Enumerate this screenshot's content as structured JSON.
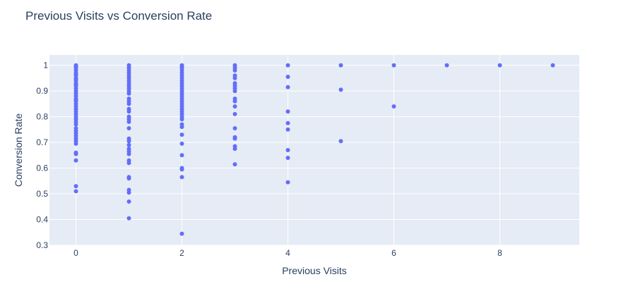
{
  "chart_data": {
    "type": "scatter",
    "title": "Previous Visits vs Conversion Rate",
    "xlabel": "Previous Visits",
    "ylabel": "Conversion Rate",
    "xlim": [
      -0.5,
      9.5
    ],
    "ylim": [
      0.3,
      1.04
    ],
    "xticks": [
      0,
      2,
      4,
      6,
      8
    ],
    "yticks": [
      0.3,
      0.4,
      0.5,
      0.6,
      0.7,
      0.8,
      0.9,
      1
    ],
    "grid": true,
    "colors": {
      "marker": "#636efa",
      "plot_bg": "#e5ecf6",
      "grid": "#ffffff",
      "text": "#2a3f5f"
    },
    "points": [
      {
        "x": 0,
        "y": 1.0
      },
      {
        "x": 0,
        "y": 0.995
      },
      {
        "x": 0,
        "y": 0.99
      },
      {
        "x": 0,
        "y": 0.98
      },
      {
        "x": 0,
        "y": 0.97
      },
      {
        "x": 0,
        "y": 0.965
      },
      {
        "x": 0,
        "y": 0.96
      },
      {
        "x": 0,
        "y": 0.95
      },
      {
        "x": 0,
        "y": 0.945
      },
      {
        "x": 0,
        "y": 0.94
      },
      {
        "x": 0,
        "y": 0.93
      },
      {
        "x": 0,
        "y": 0.925
      },
      {
        "x": 0,
        "y": 0.92
      },
      {
        "x": 0,
        "y": 0.91
      },
      {
        "x": 0,
        "y": 0.9
      },
      {
        "x": 0,
        "y": 0.89
      },
      {
        "x": 0,
        "y": 0.88
      },
      {
        "x": 0,
        "y": 0.87
      },
      {
        "x": 0,
        "y": 0.865
      },
      {
        "x": 0,
        "y": 0.86
      },
      {
        "x": 0,
        "y": 0.85
      },
      {
        "x": 0,
        "y": 0.84
      },
      {
        "x": 0,
        "y": 0.83
      },
      {
        "x": 0,
        "y": 0.82
      },
      {
        "x": 0,
        "y": 0.81
      },
      {
        "x": 0,
        "y": 0.8
      },
      {
        "x": 0,
        "y": 0.79
      },
      {
        "x": 0,
        "y": 0.78
      },
      {
        "x": 0,
        "y": 0.77
      },
      {
        "x": 0,
        "y": 0.755
      },
      {
        "x": 0,
        "y": 0.745
      },
      {
        "x": 0,
        "y": 0.735
      },
      {
        "x": 0,
        "y": 0.725
      },
      {
        "x": 0,
        "y": 0.715
      },
      {
        "x": 0,
        "y": 0.705
      },
      {
        "x": 0,
        "y": 0.695
      },
      {
        "x": 0,
        "y": 0.66
      },
      {
        "x": 0,
        "y": 0.655
      },
      {
        "x": 0,
        "y": 0.63
      },
      {
        "x": 0,
        "y": 0.53
      },
      {
        "x": 0,
        "y": 0.51
      },
      {
        "x": 1,
        "y": 1.0
      },
      {
        "x": 1,
        "y": 0.99
      },
      {
        "x": 1,
        "y": 0.98
      },
      {
        "x": 1,
        "y": 0.97
      },
      {
        "x": 1,
        "y": 0.96
      },
      {
        "x": 1,
        "y": 0.95
      },
      {
        "x": 1,
        "y": 0.94
      },
      {
        "x": 1,
        "y": 0.93
      },
      {
        "x": 1,
        "y": 0.92
      },
      {
        "x": 1,
        "y": 0.91
      },
      {
        "x": 1,
        "y": 0.9
      },
      {
        "x": 1,
        "y": 0.89
      },
      {
        "x": 1,
        "y": 0.87
      },
      {
        "x": 1,
        "y": 0.86
      },
      {
        "x": 1,
        "y": 0.85
      },
      {
        "x": 1,
        "y": 0.83
      },
      {
        "x": 1,
        "y": 0.82
      },
      {
        "x": 1,
        "y": 0.8
      },
      {
        "x": 1,
        "y": 0.79
      },
      {
        "x": 1,
        "y": 0.78
      },
      {
        "x": 1,
        "y": 0.755
      },
      {
        "x": 1,
        "y": 0.715
      },
      {
        "x": 1,
        "y": 0.705
      },
      {
        "x": 1,
        "y": 0.69
      },
      {
        "x": 1,
        "y": 0.675
      },
      {
        "x": 1,
        "y": 0.665
      },
      {
        "x": 1,
        "y": 0.655
      },
      {
        "x": 1,
        "y": 0.63
      },
      {
        "x": 1,
        "y": 0.62
      },
      {
        "x": 1,
        "y": 0.565
      },
      {
        "x": 1,
        "y": 0.56
      },
      {
        "x": 1,
        "y": 0.515
      },
      {
        "x": 1,
        "y": 0.505
      },
      {
        "x": 1,
        "y": 0.47
      },
      {
        "x": 1,
        "y": 0.405
      },
      {
        "x": 2,
        "y": 1.0
      },
      {
        "x": 2,
        "y": 0.995
      },
      {
        "x": 2,
        "y": 0.99
      },
      {
        "x": 2,
        "y": 0.98
      },
      {
        "x": 2,
        "y": 0.97
      },
      {
        "x": 2,
        "y": 0.96
      },
      {
        "x": 2,
        "y": 0.95
      },
      {
        "x": 2,
        "y": 0.94
      },
      {
        "x": 2,
        "y": 0.93
      },
      {
        "x": 2,
        "y": 0.92
      },
      {
        "x": 2,
        "y": 0.91
      },
      {
        "x": 2,
        "y": 0.9
      },
      {
        "x": 2,
        "y": 0.89
      },
      {
        "x": 2,
        "y": 0.88
      },
      {
        "x": 2,
        "y": 0.87
      },
      {
        "x": 2,
        "y": 0.86
      },
      {
        "x": 2,
        "y": 0.85
      },
      {
        "x": 2,
        "y": 0.84
      },
      {
        "x": 2,
        "y": 0.83
      },
      {
        "x": 2,
        "y": 0.82
      },
      {
        "x": 2,
        "y": 0.81
      },
      {
        "x": 2,
        "y": 0.8
      },
      {
        "x": 2,
        "y": 0.79
      },
      {
        "x": 2,
        "y": 0.77
      },
      {
        "x": 2,
        "y": 0.76
      },
      {
        "x": 2,
        "y": 0.73
      },
      {
        "x": 2,
        "y": 0.695
      },
      {
        "x": 2,
        "y": 0.65
      },
      {
        "x": 2,
        "y": 0.6
      },
      {
        "x": 2,
        "y": 0.595
      },
      {
        "x": 2,
        "y": 0.565
      },
      {
        "x": 2,
        "y": 0.345
      },
      {
        "x": 3,
        "y": 1.0
      },
      {
        "x": 3,
        "y": 0.99
      },
      {
        "x": 3,
        "y": 0.98
      },
      {
        "x": 3,
        "y": 0.96
      },
      {
        "x": 3,
        "y": 0.95
      },
      {
        "x": 3,
        "y": 0.93
      },
      {
        "x": 3,
        "y": 0.92
      },
      {
        "x": 3,
        "y": 0.91
      },
      {
        "x": 3,
        "y": 0.9
      },
      {
        "x": 3,
        "y": 0.87
      },
      {
        "x": 3,
        "y": 0.86
      },
      {
        "x": 3,
        "y": 0.84
      },
      {
        "x": 3,
        "y": 0.81
      },
      {
        "x": 3,
        "y": 0.755
      },
      {
        "x": 3,
        "y": 0.72
      },
      {
        "x": 3,
        "y": 0.715
      },
      {
        "x": 3,
        "y": 0.685
      },
      {
        "x": 3,
        "y": 0.675
      },
      {
        "x": 3,
        "y": 0.615
      },
      {
        "x": 4,
        "y": 1.0
      },
      {
        "x": 4,
        "y": 0.955
      },
      {
        "x": 4,
        "y": 0.915
      },
      {
        "x": 4,
        "y": 0.82
      },
      {
        "x": 4,
        "y": 0.775
      },
      {
        "x": 4,
        "y": 0.75
      },
      {
        "x": 4,
        "y": 0.67
      },
      {
        "x": 4,
        "y": 0.64
      },
      {
        "x": 4,
        "y": 0.545
      },
      {
        "x": 5,
        "y": 1.0
      },
      {
        "x": 5,
        "y": 0.905
      },
      {
        "x": 5,
        "y": 0.705
      },
      {
        "x": 6,
        "y": 1.0
      },
      {
        "x": 6,
        "y": 0.84
      },
      {
        "x": 7,
        "y": 1.0
      },
      {
        "x": 8,
        "y": 1.0
      },
      {
        "x": 9,
        "y": 1.0
      }
    ]
  }
}
